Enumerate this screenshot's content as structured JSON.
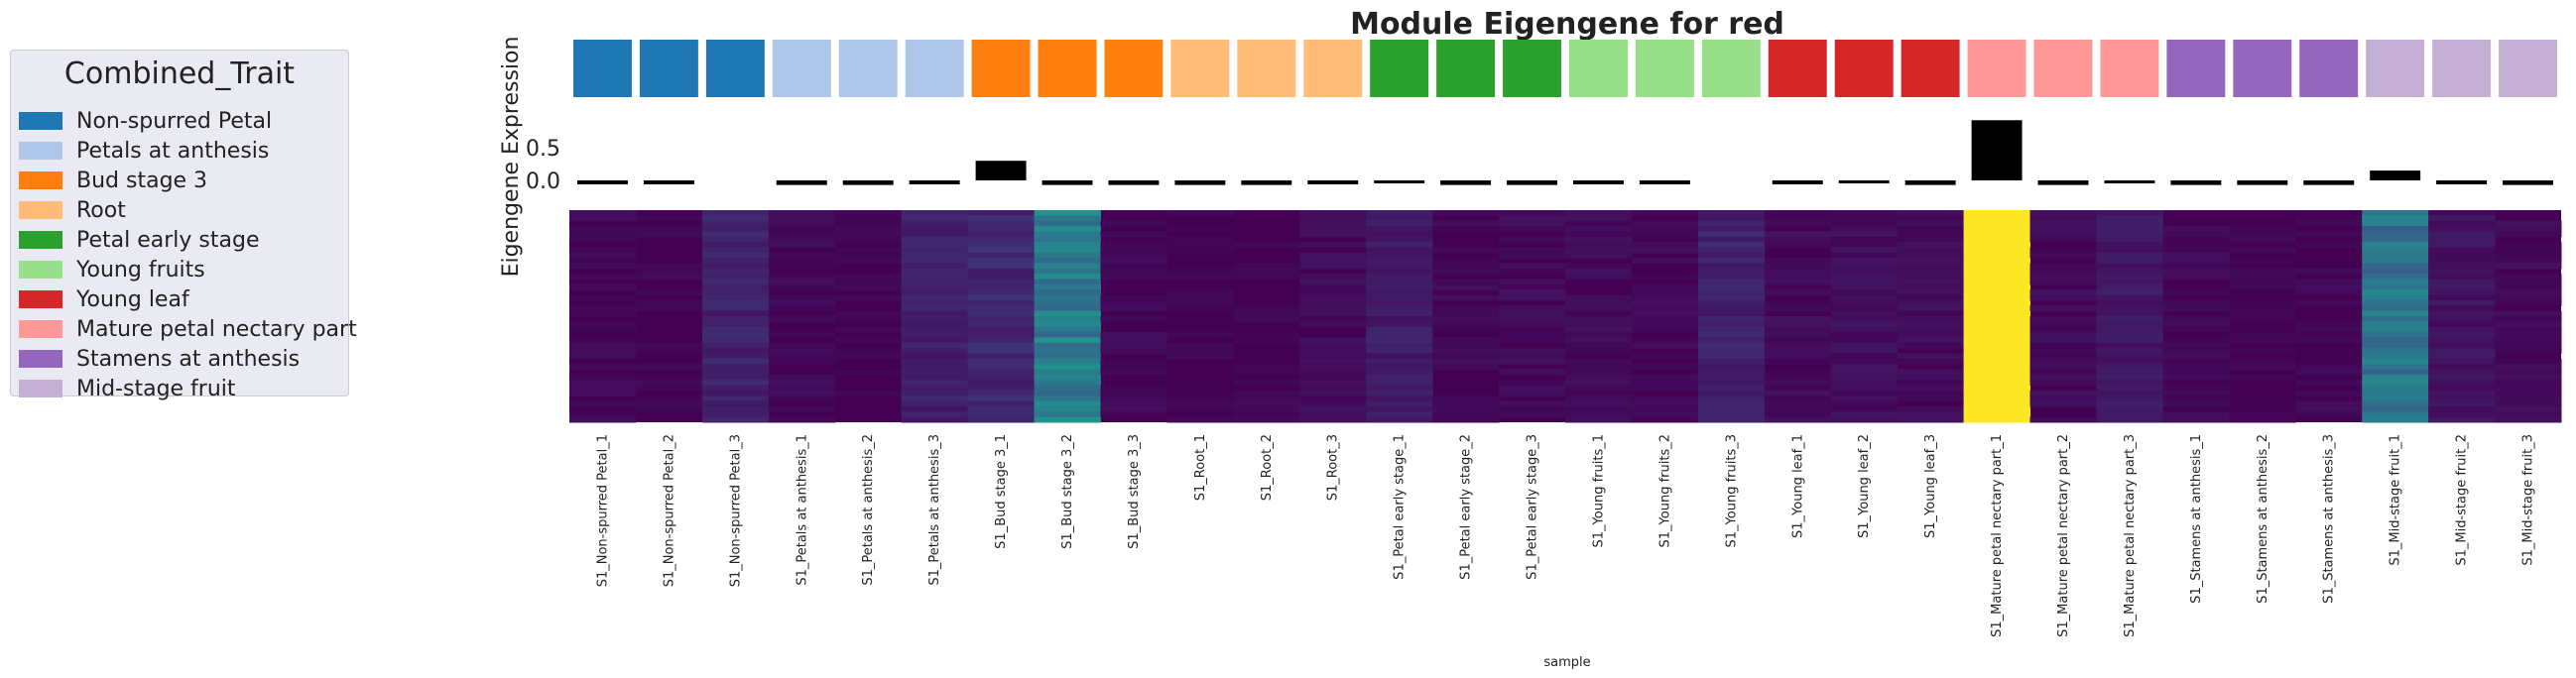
{
  "chart_data": {
    "type": "heatmap",
    "title": "Module Eigengene for red",
    "ylabel": "Eigengene Expression",
    "xlabel": "sample",
    "bar_yticks": [
      "0.5",
      "0.0"
    ],
    "bar_ylim": [
      -0.15,
      1.0
    ],
    "legend": {
      "title": "Combined_Trait",
      "entries": [
        {
          "label": "Non-spurred Petal",
          "color": "#1f77b4"
        },
        {
          "label": "Petals at anthesis",
          "color": "#aec7e8"
        },
        {
          "label": "Bud stage 3",
          "color": "#ff7f0e"
        },
        {
          "label": "Root",
          "color": "#ffbb78"
        },
        {
          "label": "Petal early stage",
          "color": "#2ca02c"
        },
        {
          "label": "Young fruits",
          "color": "#98df8a"
        },
        {
          "label": "Young leaf",
          "color": "#d62728"
        },
        {
          "label": "Mature petal nectary part",
          "color": "#ff9896"
        },
        {
          "label": "Stamens at anthesis",
          "color": "#9467bd"
        },
        {
          "label": "Mid-stage fruit",
          "color": "#c5b0d5"
        }
      ]
    },
    "samples": [
      "S1_Non-spurred Petal_1",
      "S1_Non-spurred Petal_2",
      "S1_Non-spurred Petal_3",
      "S1_Petals at anthesis_1",
      "S1_Petals at anthesis_2",
      "S1_Petals at anthesis_3",
      "S1_Bud stage 3_1",
      "S1_Bud stage 3_2",
      "S1_Bud stage 3_3",
      "S1_Root_1",
      "S1_Root_2",
      "S1_Root_3",
      "S1_Petal early stage_1",
      "S1_Petal early stage_2",
      "S1_Petal early stage_3",
      "S1_Young fruits_1",
      "S1_Young fruits_2",
      "S1_Young fruits_3",
      "S1_Young leaf_1",
      "S1_Young leaf_2",
      "S1_Young leaf_3",
      "S1_Mature petal nectary part_1",
      "S1_Mature petal nectary part_2",
      "S1_Mature petal nectary part_3",
      "S1_Stamens at anthesis_1",
      "S1_Stamens at anthesis_2",
      "S1_Stamens at anthesis_3",
      "S1_Mid-stage fruit_1",
      "S1_Mid-stage fruit_2",
      "S1_Mid-stage fruit_3"
    ],
    "sample_trait_index": [
      0,
      0,
      0,
      1,
      1,
      1,
      2,
      2,
      2,
      3,
      3,
      3,
      4,
      4,
      4,
      5,
      5,
      5,
      6,
      6,
      6,
      7,
      7,
      7,
      8,
      8,
      8,
      9,
      9,
      9
    ],
    "eigengene_values": [
      -0.06,
      -0.06,
      0.0,
      -0.07,
      -0.07,
      -0.06,
      0.3,
      -0.07,
      -0.07,
      -0.07,
      -0.07,
      -0.06,
      -0.04,
      -0.07,
      -0.07,
      -0.06,
      -0.06,
      0.0,
      -0.06,
      -0.04,
      -0.07,
      0.92,
      -0.07,
      -0.04,
      -0.07,
      -0.07,
      -0.07,
      0.15,
      -0.06,
      -0.07
    ],
    "heatmap_column_means": [
      0.02,
      0.01,
      0.1,
      0.02,
      0.01,
      0.09,
      0.12,
      0.42,
      0.02,
      0.01,
      0.01,
      0.03,
      0.08,
      0.02,
      0.03,
      0.03,
      0.02,
      0.1,
      0.03,
      0.04,
      0.03,
      1.0,
      0.03,
      0.07,
      0.02,
      0.01,
      0.02,
      0.38,
      0.05,
      0.03
    ]
  }
}
